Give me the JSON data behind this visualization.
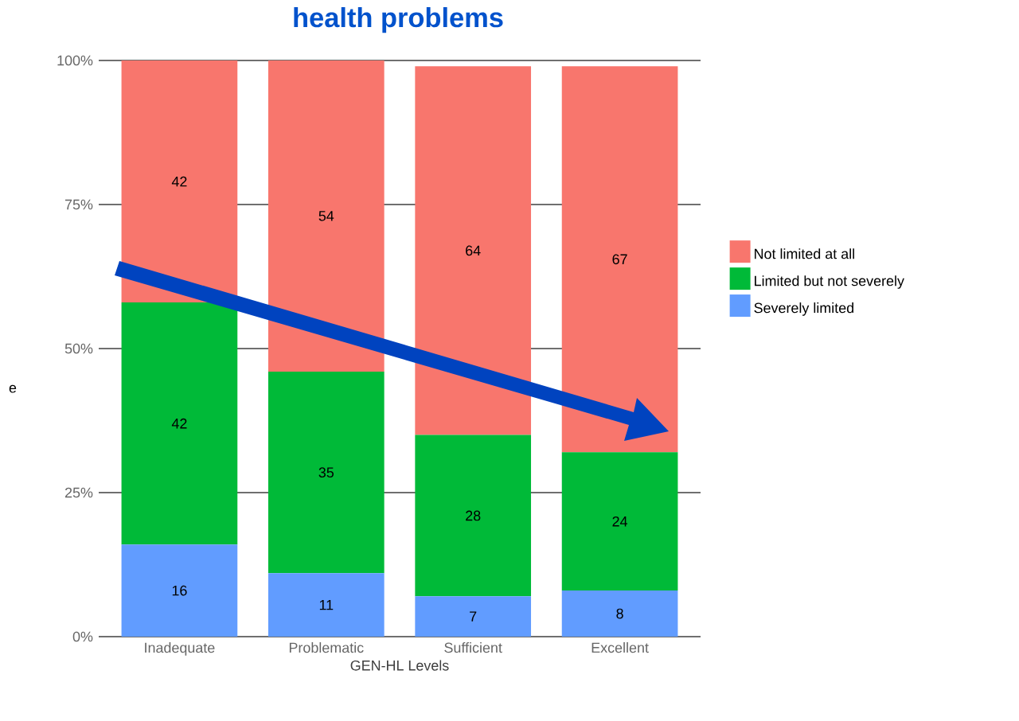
{
  "chart_data": {
    "type": "bar",
    "stacked": true,
    "title": "health problems",
    "xlabel": "GEN-HL Levels",
    "ylabel": "e",
    "categories": [
      "Inadequate",
      "Problematic",
      "Sufficient",
      "Excellent"
    ],
    "series": [
      {
        "name": "Severely limited",
        "color": "#619cff",
        "values": [
          16,
          11,
          7,
          8
        ]
      },
      {
        "name": "Limited but not severely",
        "color": "#00ba38",
        "values": [
          42,
          35,
          28,
          24
        ]
      },
      {
        "name": "Not limited at all",
        "color": "#f8766d",
        "values": [
          42,
          54,
          64,
          67
        ]
      }
    ],
    "ylim": [
      0,
      100
    ],
    "yticks": [
      {
        "value": 0,
        "label": "0%"
      },
      {
        "value": 25,
        "label": "25%"
      },
      {
        "value": 50,
        "label": "50%"
      },
      {
        "value": 75,
        "label": "75%"
      },
      {
        "value": 100,
        "label": "100%"
      }
    ],
    "grid": "y",
    "legend": "right",
    "data_labels": true
  }
}
